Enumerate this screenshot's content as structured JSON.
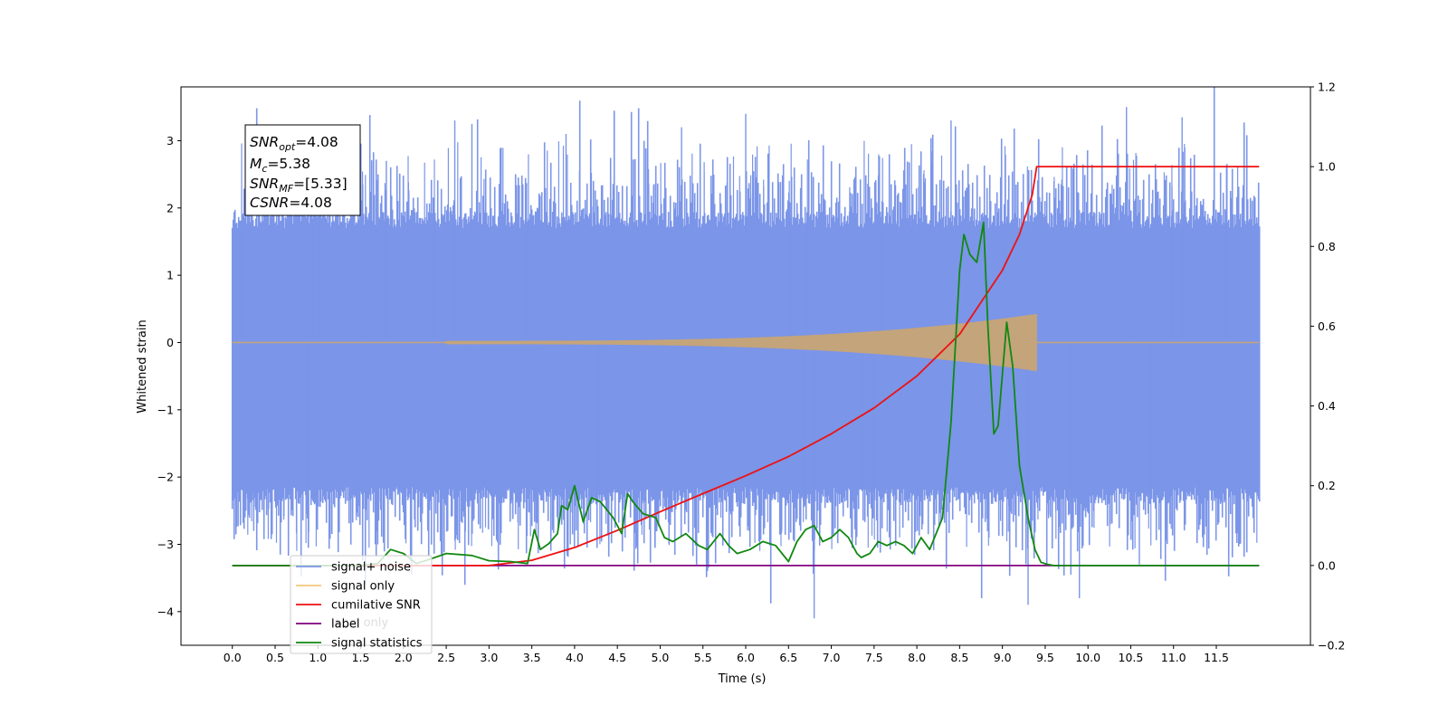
{
  "chart_data": {
    "type": "line",
    "xlabel": "Time (s)",
    "ylabel": "Whitened strain",
    "xlim": [
      -0.6,
      12.6
    ],
    "ylim": [
      -4.5,
      3.8
    ],
    "y2lim": [
      -0.2,
      1.2
    ],
    "xticks": [
      "0.0",
      "0.5",
      "1.0",
      "1.5",
      "2.0",
      "2.5",
      "3.0",
      "3.5",
      "4.0",
      "4.5",
      "5.0",
      "5.5",
      "6.0",
      "6.5",
      "7.0",
      "7.5",
      "8.0",
      "8.5",
      "9.0",
      "9.5",
      "10.0",
      "10.5",
      "11.0",
      "11.5"
    ],
    "yticks": [
      "3",
      "2",
      "1",
      "0",
      "−1",
      "−2",
      "−3",
      "−4"
    ],
    "y2ticks": [
      "1.2",
      "1.0",
      "0.8",
      "0.6",
      "0.4",
      "0.2",
      "0.0",
      "−0.2"
    ],
    "annotation": {
      "snr_opt": {
        "base": "SNR",
        "sub": "opt",
        "value": "=4.08"
      },
      "mc": {
        "base": "M",
        "sub": "c",
        "value": "=5.38"
      },
      "snr_mf": {
        "base": "SNR",
        "sub": "MF",
        "value": "=[5.33]"
      },
      "csnr": {
        "base": "CSNR",
        "value": "=4.08"
      }
    },
    "legend": {
      "placement": "lower-left",
      "entries": [
        {
          "name": "signal+ noise",
          "color": "#7b95e8"
        },
        {
          "name": "signal only",
          "color": "#f5c77a"
        },
        {
          "name": "cumilative SNR",
          "color": "#ee1111"
        },
        {
          "name": "label",
          "color": "#800080"
        },
        {
          "name": "signal statistics",
          "color": "#118811"
        }
      ],
      "hidden_entry": "label only"
    },
    "series": [
      {
        "name": "signal+ noise",
        "axis": "left",
        "color": "#7b95e8",
        "duration": 12.0,
        "envelope": {
          "core": 1.7,
          "extreme_peaks": [
            [
              0.95,
              2.7
            ],
            [
              1.8,
              2.7
            ],
            [
              2.6,
              3.3
            ],
            [
              2.8,
              3.25
            ],
            [
              3.9,
              3.1
            ],
            [
              5.25,
              3.2
            ],
            [
              6.0,
              3.4
            ],
            [
              8.4,
              3.3
            ],
            [
              10.45,
              3.5
            ],
            [
              11.1,
              3.35
            ]
          ],
          "extreme_troughs": [
            [
              0.25,
              -2.8
            ],
            [
              1.7,
              -3.0
            ],
            [
              3.95,
              -3.0
            ],
            [
              6.8,
              -4.1
            ],
            [
              9.3,
              -3.9
            ],
            [
              9.8,
              -3.45
            ],
            [
              9.9,
              -3.8
            ],
            [
              10.6,
              -3.3
            ]
          ]
        }
      },
      {
        "name": "signal only",
        "axis": "left",
        "color": "#c4a47a",
        "chirp": {
          "start": 2.5,
          "end": 9.4,
          "max_amp": 0.4
        }
      },
      {
        "name": "cumilative SNR",
        "axis": "right",
        "color": "#ee1111",
        "x": [
          0.0,
          3.0,
          3.5,
          4.0,
          4.5,
          5.0,
          5.5,
          6.0,
          6.5,
          7.0,
          7.5,
          8.0,
          8.5,
          9.0,
          9.2,
          9.35,
          9.4,
          12.0
        ],
        "y": [
          0.0,
          0.0,
          0.013,
          0.045,
          0.088,
          0.135,
          0.18,
          0.225,
          0.273,
          0.33,
          0.395,
          0.475,
          0.58,
          0.74,
          0.83,
          0.93,
          1.0,
          1.0
        ]
      },
      {
        "name": "label",
        "axis": "right",
        "color": "#800080",
        "x": [
          0.0,
          12.0
        ],
        "y": [
          0.0,
          0.0
        ]
      },
      {
        "name": "signal statistics",
        "axis": "right",
        "color": "#118811",
        "x": [
          0.0,
          1.5,
          1.7,
          1.85,
          2.0,
          2.15,
          2.3,
          2.5,
          2.8,
          3.0,
          3.25,
          3.45,
          3.53,
          3.6,
          3.7,
          3.8,
          3.85,
          3.92,
          4.0,
          4.1,
          4.2,
          4.3,
          4.45,
          4.55,
          4.62,
          4.68,
          4.8,
          4.95,
          5.05,
          5.15,
          5.3,
          5.45,
          5.55,
          5.7,
          5.8,
          5.9,
          6.05,
          6.2,
          6.35,
          6.5,
          6.6,
          6.7,
          6.8,
          6.9,
          7.0,
          7.1,
          7.2,
          7.3,
          7.35,
          7.45,
          7.55,
          7.65,
          7.75,
          7.85,
          7.95,
          8.05,
          8.15,
          8.3,
          8.4,
          8.5,
          8.55,
          8.62,
          8.7,
          8.78,
          8.83,
          8.9,
          8.95,
          9.05,
          9.12,
          9.2,
          9.3,
          9.38,
          9.45,
          9.52,
          9.6,
          9.8,
          12.0
        ],
        "y": [
          0.0,
          0.0,
          0.005,
          0.04,
          0.03,
          0.005,
          0.015,
          0.03,
          0.025,
          0.012,
          0.01,
          0.005,
          0.09,
          0.04,
          0.055,
          0.08,
          0.15,
          0.14,
          0.2,
          0.11,
          0.17,
          0.16,
          0.12,
          0.08,
          0.18,
          0.16,
          0.13,
          0.12,
          0.07,
          0.06,
          0.08,
          0.05,
          0.04,
          0.08,
          0.05,
          0.03,
          0.04,
          0.06,
          0.05,
          0.01,
          0.06,
          0.09,
          0.1,
          0.06,
          0.07,
          0.09,
          0.07,
          0.03,
          0.02,
          0.03,
          0.06,
          0.05,
          0.06,
          0.05,
          0.03,
          0.07,
          0.04,
          0.12,
          0.36,
          0.74,
          0.83,
          0.78,
          0.76,
          0.86,
          0.6,
          0.33,
          0.35,
          0.61,
          0.5,
          0.25,
          0.12,
          0.04,
          0.008,
          0.003,
          0.0,
          0.0,
          0.0
        ]
      }
    ]
  }
}
